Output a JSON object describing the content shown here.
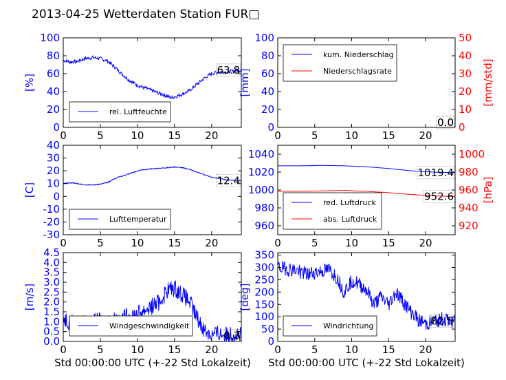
{
  "title": "2013-04-25 Wetterdaten Station FUR□",
  "xlabel": "Std 00:00:00 UTC (+-22 Std Lokalzeit)",
  "colors": {
    "blue": "#0000ff",
    "red": "#ff0000",
    "black": "#000000"
  },
  "chart_data": [
    {
      "id": "humidity",
      "type": "line",
      "ylabel": "[%]",
      "ylim": [
        0,
        100
      ],
      "yticks": [
        0,
        20,
        40,
        60,
        80,
        100
      ],
      "xlim": [
        0,
        24
      ],
      "xticks": [
        0,
        5,
        10,
        15,
        20
      ],
      "legend": "bottom-left",
      "last_value": "63.8",
      "series": [
        {
          "name": "rel. Luftfeuchte",
          "color": "#0000ff",
          "noise": 2,
          "x": [
            0,
            1,
            2,
            3,
            4,
            5,
            6,
            7,
            8,
            9,
            10,
            11,
            12,
            13,
            14,
            14.5,
            15,
            16,
            17,
            18,
            19,
            20,
            21,
            22,
            23,
            24
          ],
          "y": [
            75,
            73,
            74,
            77,
            78,
            77,
            74,
            67,
            59,
            52,
            47,
            44,
            41,
            38,
            35,
            33,
            34,
            37,
            41,
            48,
            55,
            60,
            62,
            62,
            63,
            64
          ]
        }
      ]
    },
    {
      "id": "precip",
      "type": "line",
      "ylabel": "[mm]",
      "ylim": [
        0,
        100
      ],
      "yticks": [
        0,
        20,
        40,
        60,
        80,
        100
      ],
      "ylabel2": "[mm/std]",
      "ylim2": [
        0,
        50
      ],
      "yticks2": [
        0,
        10,
        20,
        30,
        40,
        50
      ],
      "xlim": [
        0,
        24
      ],
      "xticks": [
        0,
        5,
        10,
        15,
        20
      ],
      "legend": "top-left",
      "last_value": "0.0",
      "last_value2": "0.0",
      "series": [
        {
          "name": "kum. Niederschlag",
          "color": "#0000ff",
          "axis": "left",
          "noise": 0,
          "x": [
            0,
            24
          ],
          "y": [
            0,
            0
          ]
        },
        {
          "name": "Niederschlagsrate",
          "color": "#ff0000",
          "axis": "right",
          "noise": 0,
          "x": [
            0,
            24
          ],
          "y": [
            0,
            0
          ]
        }
      ]
    },
    {
      "id": "temperature",
      "type": "line",
      "ylabel": "[C]",
      "ylim": [
        -30,
        40
      ],
      "yticks": [
        -30,
        -20,
        -10,
        0,
        10,
        20,
        30,
        40
      ],
      "xlim": [
        0,
        24
      ],
      "xticks": [
        0,
        5,
        10,
        15,
        20
      ],
      "legend": "bottom-left",
      "last_value": "12.4",
      "series": [
        {
          "name": "Lufttemperatur",
          "color": "#0000ff",
          "noise": 0.4,
          "x": [
            0,
            1,
            2,
            3,
            4,
            5,
            6,
            7,
            8,
            9,
            10,
            11,
            12,
            13,
            14,
            15,
            16,
            17,
            18,
            19,
            20,
            21,
            22,
            23,
            24
          ],
          "y": [
            10,
            10.5,
            10,
            9,
            9,
            9.5,
            11,
            14,
            16,
            18,
            20,
            21,
            21.5,
            22,
            22.5,
            23,
            22.5,
            21,
            19,
            17,
            15,
            14,
            13,
            12.5,
            12.4
          ]
        }
      ]
    },
    {
      "id": "pressure",
      "type": "line",
      "ylabel2": "[hPa]",
      "ylim": [
        950,
        1050
      ],
      "yticks": [
        960,
        980,
        1000,
        1020,
        1040
      ],
      "ylim2": [
        910,
        1010
      ],
      "yticks2": [
        920,
        940,
        960,
        980,
        1000
      ],
      "xlim": [
        0,
        24
      ],
      "xticks": [
        0,
        5,
        10,
        15,
        20
      ],
      "legend": "bottom-left",
      "last_value": "1019.4",
      "last_value2": "952.6",
      "series": [
        {
          "name": "red. Luftdruck",
          "color": "#0000ff",
          "axis": "left",
          "noise": 0,
          "x": [
            0,
            3,
            6,
            9,
            12,
            15,
            18,
            21,
            24
          ],
          "y": [
            1027,
            1027,
            1027.5,
            1027,
            1026,
            1024,
            1021.5,
            1020,
            1019.4
          ]
        },
        {
          "name": "abs. Luftdruck",
          "color": "#ff0000",
          "axis": "right",
          "noise": 0,
          "x": [
            0,
            3,
            6,
            9,
            12,
            15,
            18,
            21,
            24
          ],
          "y": [
            958.5,
            958.5,
            959,
            959.5,
            958.5,
            957,
            955,
            953.5,
            952.6
          ]
        }
      ]
    },
    {
      "id": "wind_speed",
      "type": "line",
      "ylabel": "[m/s]",
      "ylim": [
        0,
        4.5
      ],
      "yticks": [
        0.0,
        0.5,
        1.0,
        1.5,
        2.0,
        2.5,
        3.0,
        3.5,
        4.0,
        4.5
      ],
      "xlim": [
        0,
        24
      ],
      "xticks": [
        0,
        5,
        10,
        15,
        20
      ],
      "legend": "bottom-left",
      "last_value": "0.3",
      "series": [
        {
          "name": "Windgeschwindigkeit",
          "color": "#0000ff",
          "noise": 0.45,
          "x": [
            0,
            1,
            2,
            3,
            4,
            5,
            6,
            7,
            8,
            9,
            10,
            11,
            12,
            13,
            14,
            15,
            16,
            17,
            18,
            19,
            20,
            21,
            22,
            23,
            24
          ],
          "y": [
            1.2,
            1.0,
            0.9,
            0.9,
            1.0,
            1.0,
            1.0,
            1.1,
            1.2,
            1.3,
            1.4,
            1.6,
            1.8,
            2.0,
            2.6,
            2.7,
            2.4,
            2.0,
            1.2,
            0.6,
            0.3,
            0.4,
            0.3,
            0.4,
            0.3
          ]
        }
      ]
    },
    {
      "id": "wind_dir",
      "type": "line",
      "ylabel": "[deg]",
      "ylim": [
        0,
        360
      ],
      "yticks": [
        0,
        50,
        100,
        150,
        200,
        250,
        300,
        350
      ],
      "xlim": [
        0,
        24
      ],
      "xticks": [
        0,
        5,
        10,
        15,
        20
      ],
      "legend": "bottom-left",
      "last_value": "82.5",
      "series": [
        {
          "name": "Windrichtung",
          "color": "#0000ff",
          "noise": 30,
          "x": [
            0,
            1,
            2,
            3,
            4,
            5,
            6,
            7,
            8,
            9,
            10,
            11,
            12,
            13,
            14,
            15,
            16,
            17,
            18,
            19,
            20,
            21,
            22,
            23,
            24
          ],
          "y": [
            300,
            295,
            290,
            285,
            270,
            280,
            285,
            290,
            260,
            200,
            250,
            230,
            210,
            150,
            180,
            150,
            200,
            160,
            120,
            90,
            70,
            80,
            90,
            85,
            82.5
          ]
        }
      ]
    }
  ]
}
